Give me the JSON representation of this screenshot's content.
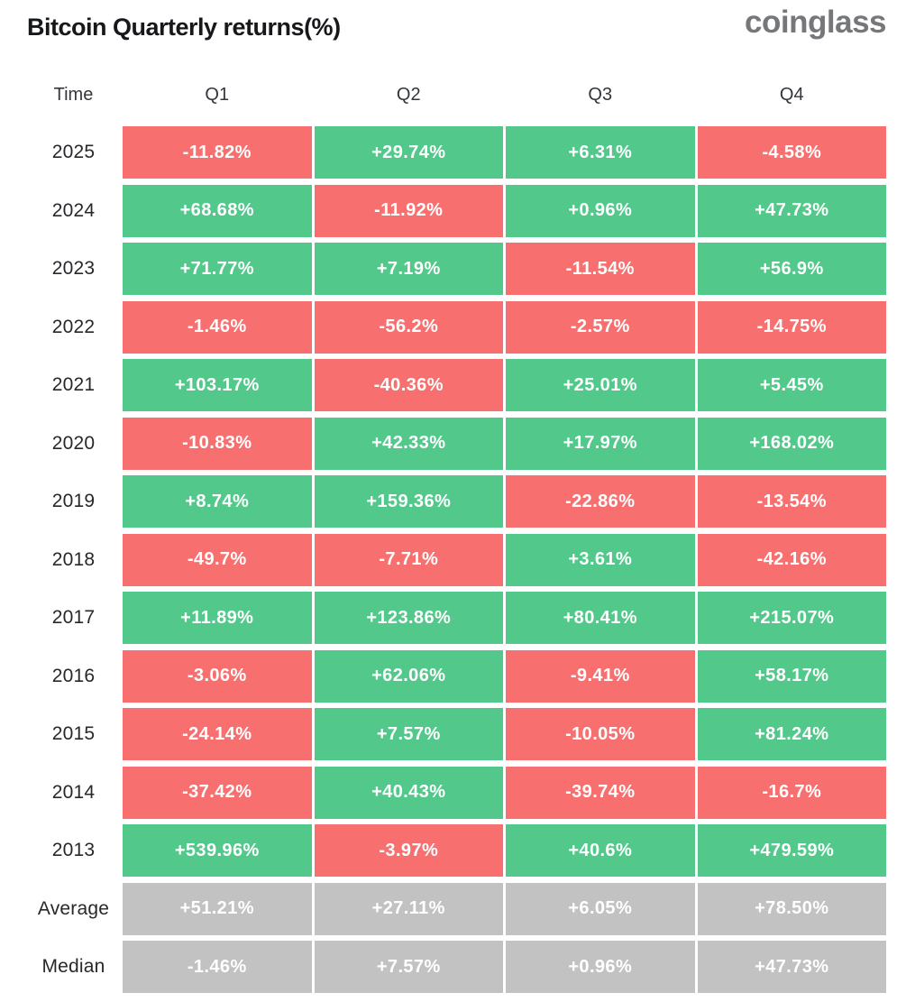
{
  "header": {
    "title": "Bitcoin Quarterly returns(%)",
    "logo_text": "coinglass"
  },
  "colors": {
    "green": "#52c98b",
    "red": "#f7706f",
    "gray": "#c2c2c2",
    "title_color": "#17181b",
    "logo_color": "#76777b"
  },
  "chart_data": {
    "type": "table",
    "title": "Bitcoin Quarterly returns(%)",
    "columns": [
      "Time",
      "Q1",
      "Q2",
      "Q3",
      "Q4"
    ],
    "legend": "green = positive quarterly return, red = negative quarterly return, gray = summary rows",
    "rows": [
      {
        "label": "2025",
        "type": "year",
        "values": [
          "-11.82%",
          "+29.74%",
          "+6.31%",
          "-4.58%"
        ]
      },
      {
        "label": "2024",
        "type": "year",
        "values": [
          "+68.68%",
          "-11.92%",
          "+0.96%",
          "+47.73%"
        ]
      },
      {
        "label": "2023",
        "type": "year",
        "values": [
          "+71.77%",
          "+7.19%",
          "-11.54%",
          "+56.9%"
        ]
      },
      {
        "label": "2022",
        "type": "year",
        "values": [
          "-1.46%",
          "-56.2%",
          "-2.57%",
          "-14.75%"
        ]
      },
      {
        "label": "2021",
        "type": "year",
        "values": [
          "+103.17%",
          "-40.36%",
          "+25.01%",
          "+5.45%"
        ]
      },
      {
        "label": "2020",
        "type": "year",
        "values": [
          "-10.83%",
          "+42.33%",
          "+17.97%",
          "+168.02%"
        ]
      },
      {
        "label": "2019",
        "type": "year",
        "values": [
          "+8.74%",
          "+159.36%",
          "-22.86%",
          "-13.54%"
        ]
      },
      {
        "label": "2018",
        "type": "year",
        "values": [
          "-49.7%",
          "-7.71%",
          "+3.61%",
          "-42.16%"
        ]
      },
      {
        "label": "2017",
        "type": "year",
        "values": [
          "+11.89%",
          "+123.86%",
          "+80.41%",
          "+215.07%"
        ]
      },
      {
        "label": "2016",
        "type": "year",
        "values": [
          "-3.06%",
          "+62.06%",
          "-9.41%",
          "+58.17%"
        ]
      },
      {
        "label": "2015",
        "type": "year",
        "values": [
          "-24.14%",
          "+7.57%",
          "-10.05%",
          "+81.24%"
        ]
      },
      {
        "label": "2014",
        "type": "year",
        "values": [
          "-37.42%",
          "+40.43%",
          "-39.74%",
          "-16.7%"
        ]
      },
      {
        "label": "2013",
        "type": "year",
        "values": [
          "+539.96%",
          "-3.97%",
          "+40.6%",
          "+479.59%"
        ]
      },
      {
        "label": "Average",
        "type": "summary",
        "values": [
          "+51.21%",
          "+27.11%",
          "+6.05%",
          "+78.50%"
        ]
      },
      {
        "label": "Median",
        "type": "summary",
        "values": [
          "-1.46%",
          "+7.57%",
          "+0.96%",
          "+47.73%"
        ]
      }
    ]
  }
}
